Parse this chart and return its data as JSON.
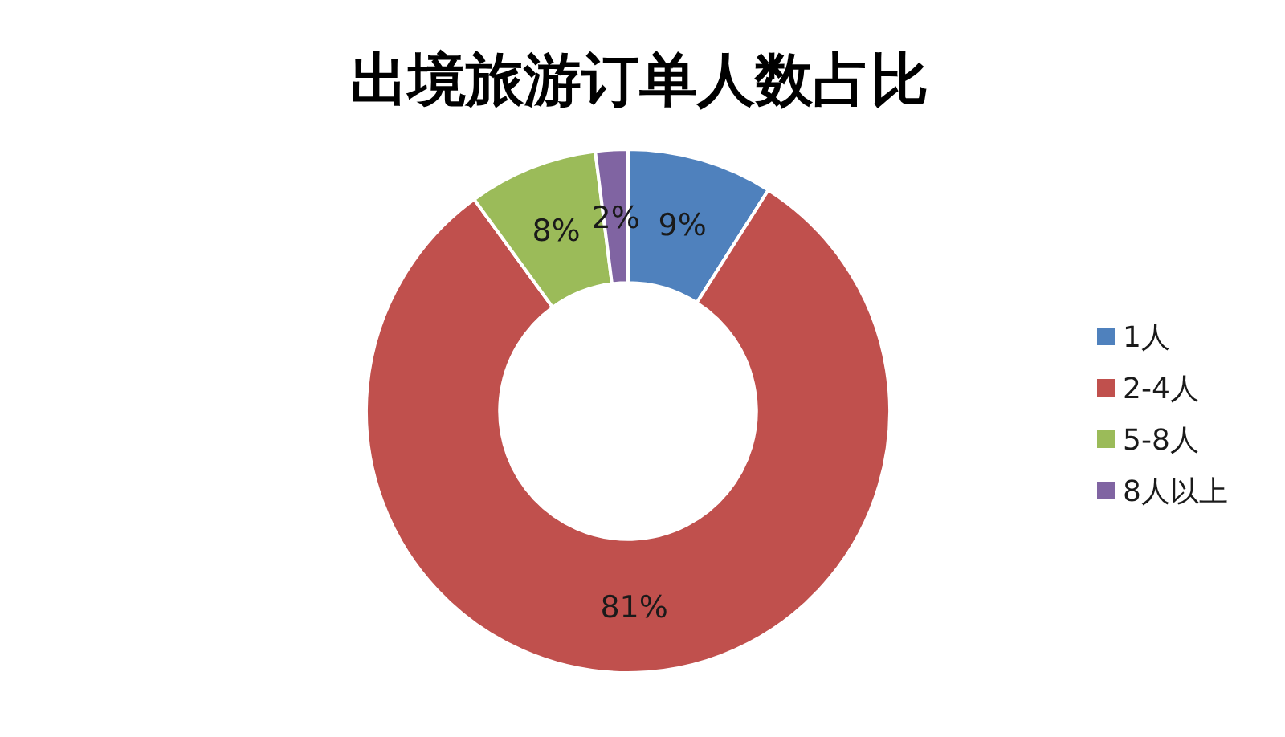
{
  "chart_data": {
    "type": "donut",
    "title": "出境旅游订单人数占比",
    "categories": [
      "1人",
      "2-4人",
      "5-8人",
      "8人以上"
    ],
    "values": [
      9,
      81,
      8,
      2
    ],
    "value_labels": [
      "9%",
      "81%",
      "8%",
      "2%"
    ],
    "colors": [
      "#4f81bd",
      "#c0504d",
      "#9bbb59",
      "#8064a2"
    ],
    "legend": "right"
  }
}
